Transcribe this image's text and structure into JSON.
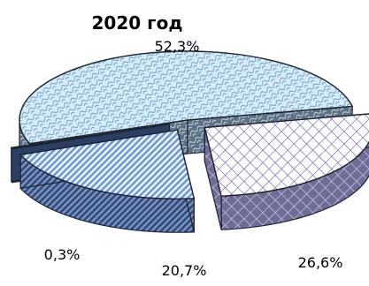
{
  "chart_data": {
    "type": "pie",
    "title": "2020 год",
    "slices": [
      {
        "label": "52,3%",
        "value": 52.3,
        "color": "#cfe6f2",
        "pattern": "diagonal-scales"
      },
      {
        "label": "26,6%",
        "value": 26.6,
        "color": "#ffffff",
        "pattern": "cross-hatch",
        "exploded": true
      },
      {
        "label": "20,7%",
        "value": 20.7,
        "color": "#5b8fd6",
        "pattern": "diagonal-stripes",
        "exploded": true
      },
      {
        "label": "0,3%",
        "value": 0.3,
        "color": "#3b5a8a",
        "pattern": "solid",
        "exploded": true
      }
    ],
    "style": "3d-exploded"
  }
}
